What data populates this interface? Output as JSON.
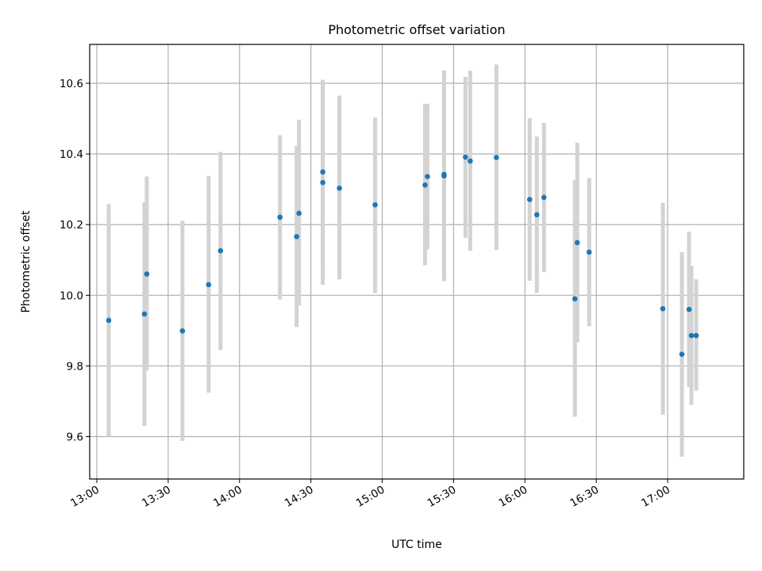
{
  "chart_data": {
    "type": "scatter",
    "title": "Photometric offset variation",
    "xlabel": "UTC time",
    "ylabel": "Photometric offset",
    "xlim": [
      "12:57",
      "17:32"
    ],
    "ylim": [
      9.48,
      10.71
    ],
    "xticks": [
      "13:00",
      "13:30",
      "14:00",
      "14:30",
      "15:00",
      "15:30",
      "16:00",
      "16:30",
      "17:00"
    ],
    "yticks": [
      "9.6",
      "9.8",
      "10.0",
      "10.2",
      "10.4",
      "10.6"
    ],
    "grid": true,
    "colors": {
      "point": "#1f77b4",
      "errorbar": "#d3d3d3",
      "grid": "#b0b0b0"
    },
    "points": [
      {
        "x": "13:05",
        "y": 9.929,
        "ylow": 9.6,
        "yhigh": 10.258
      },
      {
        "x": "13:20",
        "y": 9.947,
        "ylow": 9.63,
        "yhigh": 10.263
      },
      {
        "x": "13:21",
        "y": 10.06,
        "ylow": 9.787,
        "yhigh": 10.336
      },
      {
        "x": "13:36",
        "y": 9.899,
        "ylow": 9.588,
        "yhigh": 10.211
      },
      {
        "x": "13:47",
        "y": 10.03,
        "ylow": 9.724,
        "yhigh": 10.338
      },
      {
        "x": "13:52",
        "y": 10.126,
        "ylow": 9.845,
        "yhigh": 10.406
      },
      {
        "x": "14:17",
        "y": 10.221,
        "ylow": 9.988,
        "yhigh": 10.453
      },
      {
        "x": "14:24",
        "y": 10.166,
        "ylow": 9.91,
        "yhigh": 10.423
      },
      {
        "x": "14:25",
        "y": 10.232,
        "ylow": 9.971,
        "yhigh": 10.497
      },
      {
        "x": "14:35",
        "y": 10.349,
        "ylow": 10.088,
        "yhigh": 10.61
      },
      {
        "x": "14:35",
        "y": 10.319,
        "ylow": 10.03,
        "yhigh": 10.608
      },
      {
        "x": "14:42",
        "y": 10.303,
        "ylow": 10.045,
        "yhigh": 10.565
      },
      {
        "x": "14:57",
        "y": 10.256,
        "ylow": 10.006,
        "yhigh": 10.503
      },
      {
        "x": "15:18",
        "y": 10.312,
        "ylow": 10.085,
        "yhigh": 10.542
      },
      {
        "x": "15:19",
        "y": 10.336,
        "ylow": 10.13,
        "yhigh": 10.542
      },
      {
        "x": "15:26",
        "y": 10.342,
        "ylow": 10.066,
        "yhigh": 10.617
      },
      {
        "x": "15:26",
        "y": 10.338,
        "ylow": 10.04,
        "yhigh": 10.636
      },
      {
        "x": "15:35",
        "y": 10.391,
        "ylow": 10.163,
        "yhigh": 10.618
      },
      {
        "x": "15:37",
        "y": 10.38,
        "ylow": 10.126,
        "yhigh": 10.636
      },
      {
        "x": "15:48",
        "y": 10.39,
        "ylow": 10.128,
        "yhigh": 10.653
      },
      {
        "x": "16:02",
        "y": 10.271,
        "ylow": 10.041,
        "yhigh": 10.501
      },
      {
        "x": "16:05",
        "y": 10.228,
        "ylow": 10.007,
        "yhigh": 10.449
      },
      {
        "x": "16:08",
        "y": 10.277,
        "ylow": 10.066,
        "yhigh": 10.488
      },
      {
        "x": "16:21",
        "y": 9.99,
        "ylow": 9.656,
        "yhigh": 10.326
      },
      {
        "x": "16:22",
        "y": 10.149,
        "ylow": 9.867,
        "yhigh": 10.432
      },
      {
        "x": "16:27",
        "y": 10.122,
        "ylow": 9.912,
        "yhigh": 10.332
      },
      {
        "x": "16:58",
        "y": 9.962,
        "ylow": 9.662,
        "yhigh": 10.262
      },
      {
        "x": "17:06",
        "y": 9.833,
        "ylow": 9.543,
        "yhigh": 10.122
      },
      {
        "x": "17:09",
        "y": 9.96,
        "ylow": 9.74,
        "yhigh": 10.18
      },
      {
        "x": "17:10",
        "y": 9.886,
        "ylow": 9.69,
        "yhigh": 10.083
      },
      {
        "x": "17:12",
        "y": 9.886,
        "ylow": 9.73,
        "yhigh": 10.045
      }
    ]
  }
}
